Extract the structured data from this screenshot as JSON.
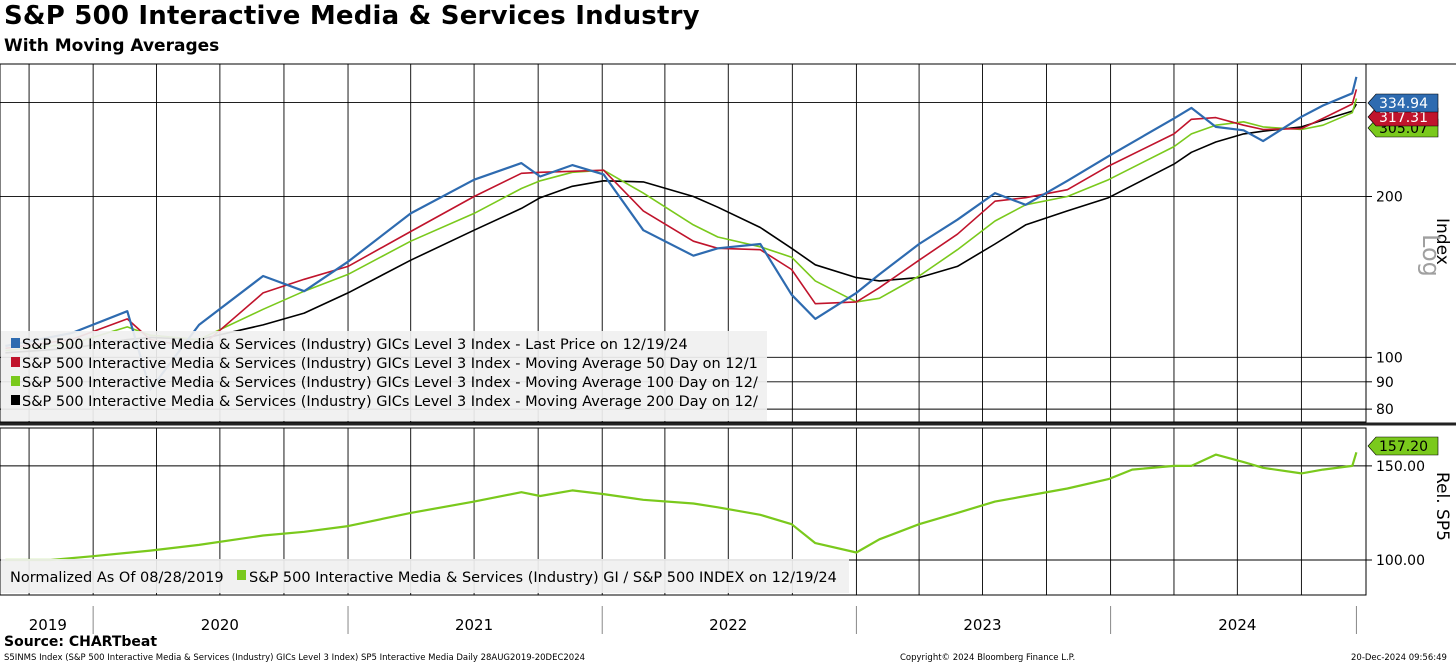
{
  "header": {
    "title": "S&P 500 Interactive Media & Services Industry",
    "subtitle": "With Moving Averages"
  },
  "footer": {
    "source": "Source: CHARTbeat",
    "ticker_line": "S5INMS Index (S&P 500 Interactive Media & Services (Industry) GICs Level 3 Index) SP5 Interactive Media  Daily 28AUG2019-20DEC2024",
    "copyright": "Copyright© 2024 Bloomberg Finance L.P.",
    "timestamp": "20-Dec-2024 09:56:49"
  },
  "chart_data": [
    {
      "type": "line",
      "title": "",
      "panel": "top",
      "yscale": "log",
      "ylabel": "Index",
      "scale_label": "Log",
      "ylim": [
        77,
        345
      ],
      "yticks": [
        80,
        90,
        100,
        200
      ],
      "xticks": [
        "2019",
        "2020",
        "2021",
        "2022",
        "2023",
        "2024"
      ],
      "x": [
        "2019-08-28",
        "2019-12-01",
        "2020-02-19",
        "2020-03-23",
        "2020-06-01",
        "2020-09-01",
        "2020-10-30",
        "2021-01-01",
        "2021-04-01",
        "2021-07-01",
        "2021-09-07",
        "2021-10-04",
        "2021-11-19",
        "2022-01-03",
        "2022-03-01",
        "2022-05-12",
        "2022-06-16",
        "2022-08-16",
        "2022-09-30",
        "2022-11-03",
        "2023-01-01",
        "2023-02-03",
        "2023-04-01",
        "2023-05-26",
        "2023-07-19",
        "2023-09-01",
        "2023-10-31",
        "2023-12-29",
        "2024-04-01",
        "2024-04-26",
        "2024-05-31",
        "2024-07-10",
        "2024-08-07",
        "2024-10-01",
        "2024-11-01",
        "2024-12-13",
        "2024-12-19"
      ],
      "series": [
        {
          "name": "S&P 500 Interactive Media & Services (Industry) GICs Level 3 Index - Last Price on 12/19/24",
          "color": "#2e6bb0",
          "values": [
            105,
            111,
            122,
            87,
            115,
            142,
            133,
            151,
            186,
            215,
            231,
            218,
            229,
            220,
            173,
            155,
            160,
            163,
            131,
            118,
            132,
            143,
            163,
            181,
            203,
            193,
            214,
            238,
            280,
            293,
            270,
            266,
            254,
            282,
            296,
            312,
            334.94
          ]
        },
        {
          "name": "S&P 500 Interactive Media & Services (Industry) GICs Level 3 Index - Moving Average 50 Day on 12/1",
          "color": "#c0142c",
          "values": [
            104,
            108,
            118,
            108,
            104,
            132,
            140,
            148,
            172,
            200,
            221,
            222,
            223,
            224,
            188,
            165,
            160,
            159,
            146,
            126,
            127,
            135,
            152,
            170,
            196,
            199,
            206,
            228,
            262,
            279,
            281,
            272,
            267,
            268,
            280,
            298,
            317.31
          ]
        },
        {
          "name": "S&P 500 Interactive Media & Services (Industry) GICs Level 3 Index - Moving Average 100 Day on 12/",
          "color": "#7ac91c",
          "values": [
            103,
            106,
            114,
            110,
            108,
            123,
            133,
            143,
            165,
            186,
            207,
            214,
            222,
            224,
            203,
            177,
            168,
            161,
            154,
            139,
            127,
            129,
            142,
            159,
            180,
            193,
            200,
            215,
            248,
            262,
            272,
            276,
            270,
            267,
            272,
            287,
            305.07
          ]
        },
        {
          "name": "S&P 500 Interactive Media & Services (Industry) GICs Level 3 Index - Moving Average 200 Day on 12/",
          "color": "#000000",
          "values": [
            102,
            104,
            108,
            109,
            108,
            115,
            121,
            132,
            152,
            173,
            190,
            199,
            209,
            214,
            213,
            200,
            191,
            175,
            160,
            149,
            141,
            139,
            141,
            148,
            163,
            177,
            188,
            199,
            230,
            242,
            253,
            262,
            265,
            270,
            278,
            289,
            297.82
          ]
        }
      ],
      "last_values": {
        "price": "334.94",
        "ma50": "317.31",
        "ma100": "305.07"
      }
    },
    {
      "type": "line",
      "title": "",
      "panel": "bottom",
      "ylabel": "Rel. SP5",
      "ylim": [
        83,
        168
      ],
      "yticks": [
        "100.00",
        "150.00"
      ],
      "xticks": [
        "2019",
        "2020",
        "2021",
        "2022",
        "2023",
        "2024"
      ],
      "normalized_note": "Normalized As Of 08/28/2019",
      "x": [
        "2019-08-28",
        "2019-11-01",
        "2020-01-01",
        "2020-03-23",
        "2020-06-01",
        "2020-09-01",
        "2020-10-30",
        "2021-01-01",
        "2021-04-01",
        "2021-07-01",
        "2021-09-07",
        "2021-10-04",
        "2021-11-19",
        "2022-01-03",
        "2022-03-01",
        "2022-05-12",
        "2022-06-16",
        "2022-08-16",
        "2022-09-30",
        "2022-11-03",
        "2023-01-01",
        "2023-02-03",
        "2023-04-01",
        "2023-05-26",
        "2023-07-19",
        "2023-09-01",
        "2023-10-31",
        "2023-12-29",
        "2024-02-01",
        "2024-04-01",
        "2024-04-26",
        "2024-05-31",
        "2024-07-10",
        "2024-08-07",
        "2024-10-01",
        "2024-11-01",
        "2024-12-13",
        "2024-12-19"
      ],
      "series": [
        {
          "name": "S&P 500 Interactive Media & Services (Industry) GI / S&P 500 INDEX on 12/19/24",
          "color": "#7ac91c",
          "values": [
            100,
            100,
            102,
            105,
            108,
            113,
            115,
            118,
            125,
            131,
            136,
            134,
            137,
            135,
            132,
            130,
            128,
            124,
            119,
            109,
            104,
            111,
            119,
            125,
            131,
            134,
            138,
            143,
            148,
            150,
            150,
            156,
            152,
            149,
            146,
            148,
            150,
            157.2
          ]
        }
      ],
      "last_values": {
        "rel": "157.20"
      }
    }
  ]
}
